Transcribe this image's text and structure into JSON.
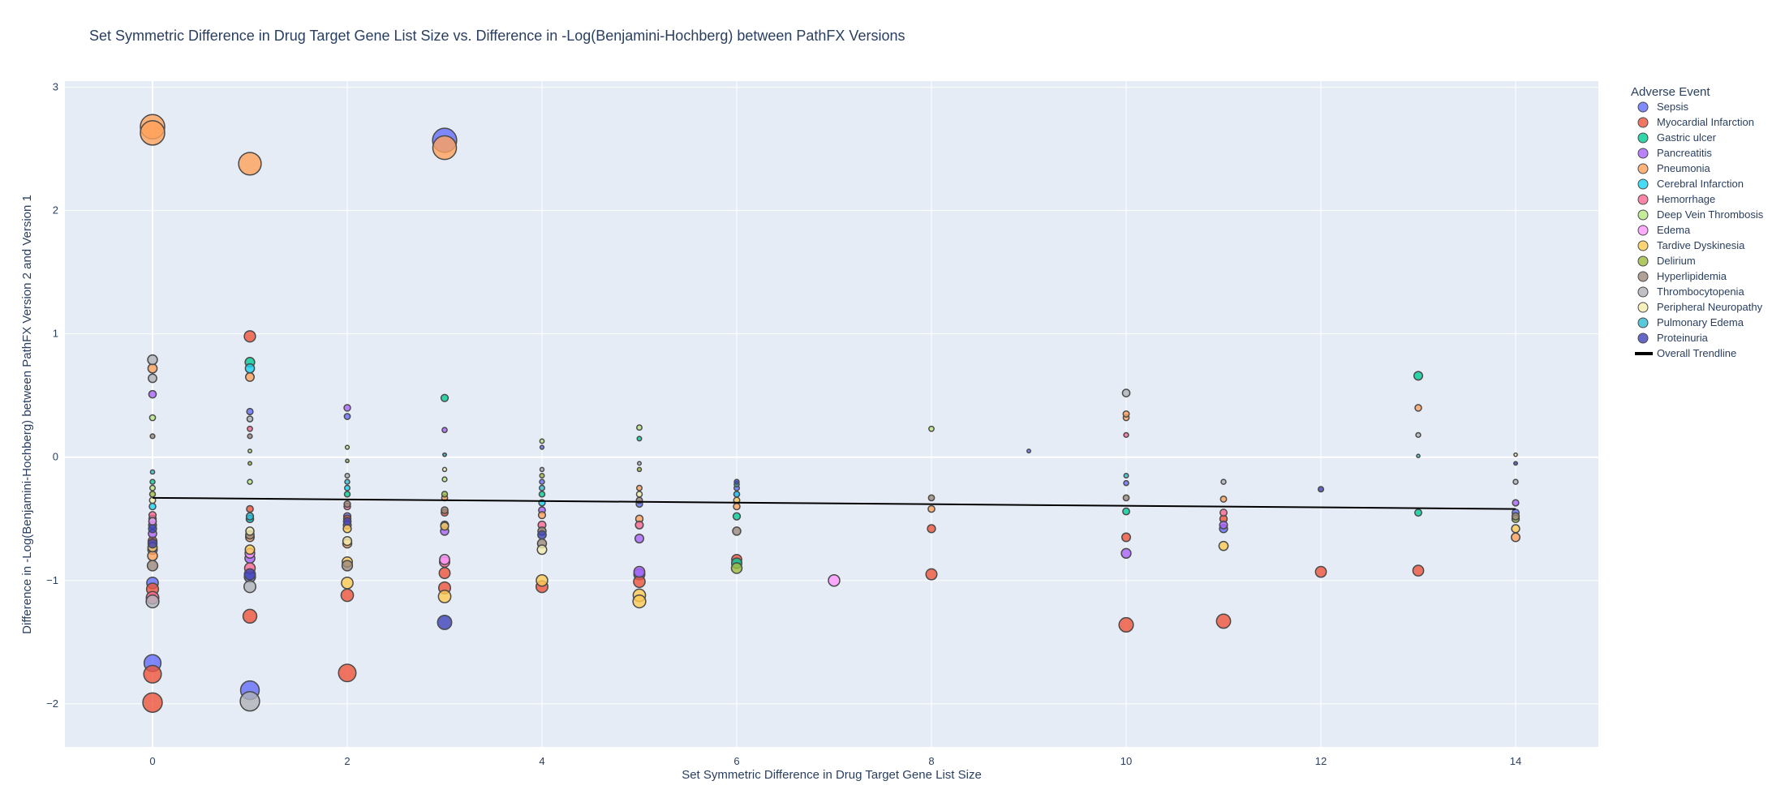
{
  "chart_data": {
    "type": "scatter",
    "title": "Set Symmetric Difference in Drug Target Gene List Size vs. Difference in -Log(Benjamini-Hochberg) between PathFX Versions",
    "xlabel": "Set Symmetric Difference in Drug Target Gene List Size",
    "ylabel": "Difference in -Log(Benjamini-Hochberg) between PathFX Version 2 and Version 1",
    "xlim": [
      -0.9,
      14.85
    ],
    "ylim": [
      -2.35,
      3.05
    ],
    "xticks": [
      0,
      2,
      4,
      6,
      8,
      10,
      12,
      14
    ],
    "yticks": [
      -2,
      -1,
      0,
      1,
      2,
      3
    ],
    "xtick_labels": [
      "0",
      "2",
      "4",
      "6",
      "8",
      "10",
      "12",
      "14"
    ],
    "ytick_labels": [
      "−2",
      "−1",
      "0",
      "1",
      "2",
      "3"
    ],
    "grid": true,
    "legend": {
      "title": "Adverse Event",
      "placement": "right",
      "trendline_label": "Overall Trendline"
    },
    "trendline": {
      "x": [
        0,
        14
      ],
      "y": [
        -0.33,
        -0.42
      ]
    },
    "series": [
      {
        "name": "Sepsis",
        "color": "#636efa",
        "points": [
          [
            0,
            -0.55
          ],
          [
            0,
            -0.75
          ],
          [
            0,
            -1.02
          ],
          [
            0,
            -1.67
          ],
          [
            1,
            0.37
          ],
          [
            1,
            -0.97
          ],
          [
            1,
            -1.89
          ],
          [
            2,
            0.33
          ],
          [
            2,
            -0.48
          ],
          [
            3,
            2.57
          ],
          [
            3,
            -0.55
          ],
          [
            4,
            0.08
          ],
          [
            4,
            -0.2
          ],
          [
            5,
            -0.38
          ],
          [
            5,
            -0.95
          ],
          [
            6,
            -0.25
          ],
          [
            9,
            0.05
          ],
          [
            10,
            -0.21
          ],
          [
            11,
            -0.58
          ],
          [
            14,
            -0.45
          ]
        ]
      },
      {
        "name": "Myocardial Infarction",
        "color": "#ef553b",
        "points": [
          [
            0,
            -0.68
          ],
          [
            0,
            -1.07
          ],
          [
            0,
            -1.76
          ],
          [
            0,
            -1.99
          ],
          [
            1,
            0.98
          ],
          [
            1,
            -0.42
          ],
          [
            1,
            -1.29
          ],
          [
            2,
            -0.5
          ],
          [
            2,
            -1.12
          ],
          [
            2,
            -1.75
          ],
          [
            3,
            -0.45
          ],
          [
            3,
            -0.94
          ],
          [
            3,
            -1.06
          ],
          [
            4,
            -1.05
          ],
          [
            5,
            -1.01
          ],
          [
            6,
            -0.83
          ],
          [
            8,
            -0.58
          ],
          [
            8,
            -0.95
          ],
          [
            10,
            -0.65
          ],
          [
            10,
            -1.36
          ],
          [
            11,
            -0.5
          ],
          [
            11,
            -1.33
          ],
          [
            12,
            -0.93
          ],
          [
            13,
            -0.92
          ]
        ]
      },
      {
        "name": "Gastric ulcer",
        "color": "#00cc96",
        "points": [
          [
            0,
            -0.2
          ],
          [
            0,
            -0.5
          ],
          [
            1,
            0.77
          ],
          [
            1,
            -0.5
          ],
          [
            2,
            -0.3
          ],
          [
            3,
            0.48
          ],
          [
            4,
            -0.3
          ],
          [
            5,
            0.15
          ],
          [
            6,
            -0.48
          ],
          [
            6,
            -0.86
          ],
          [
            10,
            -0.44
          ],
          [
            13,
            0.66
          ],
          [
            13,
            -0.45
          ]
        ]
      },
      {
        "name": "Pancreatitis",
        "color": "#ab63fa",
        "points": [
          [
            0,
            0.51
          ],
          [
            0,
            -0.62
          ],
          [
            1,
            -0.82
          ],
          [
            2,
            0.4
          ],
          [
            2,
            -0.55
          ],
          [
            3,
            0.22
          ],
          [
            3,
            -0.6
          ],
          [
            4,
            -0.43
          ],
          [
            5,
            -0.66
          ],
          [
            5,
            -0.93
          ],
          [
            6,
            -0.3
          ],
          [
            10,
            -0.78
          ],
          [
            11,
            -0.55
          ],
          [
            14,
            -0.37
          ]
        ]
      },
      {
        "name": "Pneumonia",
        "color": "#ffa15a",
        "points": [
          [
            0,
            2.68
          ],
          [
            0,
            2.63
          ],
          [
            0,
            0.72
          ],
          [
            0,
            -0.8
          ],
          [
            1,
            2.38
          ],
          [
            1,
            0.65
          ],
          [
            1,
            -0.65
          ],
          [
            2,
            -0.7
          ],
          [
            3,
            2.51
          ],
          [
            3,
            -0.33
          ],
          [
            4,
            -0.47
          ],
          [
            5,
            -0.25
          ],
          [
            5,
            -0.5
          ],
          [
            6,
            -0.4
          ],
          [
            8,
            -0.42
          ],
          [
            10,
            0.32
          ],
          [
            10,
            0.35
          ],
          [
            11,
            -0.34
          ],
          [
            13,
            0.4
          ],
          [
            14,
            -0.65
          ]
        ]
      },
      {
        "name": "Cerebral Infarction",
        "color": "#19d3f3",
        "points": [
          [
            0,
            -0.4
          ],
          [
            1,
            0.72
          ],
          [
            1,
            -0.5
          ],
          [
            2,
            -0.25
          ],
          [
            4,
            -0.37
          ],
          [
            6,
            -0.3
          ]
        ]
      },
      {
        "name": "Hemorrhage",
        "color": "#ff6692",
        "points": [
          [
            0,
            -0.47
          ],
          [
            0,
            -1.14
          ],
          [
            1,
            0.23
          ],
          [
            1,
            -0.9
          ],
          [
            2,
            -0.4
          ],
          [
            3,
            -0.85
          ],
          [
            4,
            -0.55
          ],
          [
            5,
            -0.55
          ],
          [
            10,
            0.18
          ],
          [
            11,
            -0.45
          ]
        ]
      },
      {
        "name": "Deep Vein Thrombosis",
        "color": "#b6e880",
        "points": [
          [
            0,
            0.32
          ],
          [
            0,
            -0.25
          ],
          [
            1,
            0.05
          ],
          [
            1,
            -0.2
          ],
          [
            2,
            0.08
          ],
          [
            3,
            -0.18
          ],
          [
            4,
            0.13
          ],
          [
            5,
            0.24
          ],
          [
            8,
            0.23
          ]
        ]
      },
      {
        "name": "Edema",
        "color": "#ff97ff",
        "points": [
          [
            0,
            -0.52
          ],
          [
            1,
            -0.78
          ],
          [
            3,
            -0.83
          ],
          [
            7,
            -1.0
          ]
        ]
      },
      {
        "name": "Tardive Dyskinesia",
        "color": "#fecb52",
        "points": [
          [
            0,
            -0.73
          ],
          [
            1,
            -0.75
          ],
          [
            2,
            -0.58
          ],
          [
            2,
            -0.85
          ],
          [
            2,
            -1.02
          ],
          [
            3,
            -0.56
          ],
          [
            3,
            -1.13
          ],
          [
            4,
            -1.0
          ],
          [
            5,
            -1.12
          ],
          [
            5,
            -1.17
          ],
          [
            6,
            -0.35
          ],
          [
            11,
            -0.72
          ],
          [
            14,
            -0.58
          ]
        ]
      },
      {
        "name": "Delirium",
        "color": "#9ebb3e",
        "points": [
          [
            0,
            -0.3
          ],
          [
            1,
            -0.05
          ],
          [
            2,
            -0.03
          ],
          [
            3,
            -0.3
          ],
          [
            4,
            -0.15
          ],
          [
            5,
            -0.1
          ],
          [
            6,
            -0.9
          ],
          [
            14,
            -0.5
          ]
        ]
      },
      {
        "name": "Hyperlipidemia",
        "color": "#9c8a7c",
        "points": [
          [
            0,
            0.17
          ],
          [
            0,
            -0.88
          ],
          [
            1,
            0.17
          ],
          [
            1,
            -0.63
          ],
          [
            2,
            -0.38
          ],
          [
            2,
            -0.88
          ],
          [
            3,
            -0.43
          ],
          [
            4,
            -0.6
          ],
          [
            4,
            -0.7
          ],
          [
            5,
            -0.35
          ],
          [
            6,
            -0.6
          ],
          [
            8,
            -0.33
          ],
          [
            10,
            -0.33
          ],
          [
            14,
            -0.48
          ]
        ]
      },
      {
        "name": "Thrombocytopenia",
        "color": "#b0b2b8",
        "points": [
          [
            0,
            0.79
          ],
          [
            0,
            0.64
          ],
          [
            0,
            -1.17
          ],
          [
            1,
            0.31
          ],
          [
            1,
            -1.05
          ],
          [
            1,
            -1.98
          ],
          [
            2,
            -0.15
          ],
          [
            3,
            0.02
          ],
          [
            4,
            -0.1
          ],
          [
            5,
            -0.05
          ],
          [
            10,
            0.52
          ],
          [
            11,
            -0.2
          ],
          [
            13,
            0.18
          ],
          [
            14,
            -0.2
          ]
        ]
      },
      {
        "name": "Peripheral Neuropathy",
        "color": "#f2ecad",
        "points": [
          [
            0,
            -0.35
          ],
          [
            1,
            -0.6
          ],
          [
            2,
            -0.68
          ],
          [
            3,
            -0.1
          ],
          [
            4,
            -0.75
          ],
          [
            5,
            -0.3
          ],
          [
            14,
            0.02
          ]
        ]
      },
      {
        "name": "Pulmonary Edema",
        "color": "#2ebcd1",
        "points": [
          [
            0,
            -0.12
          ],
          [
            1,
            -0.48
          ],
          [
            2,
            -0.2
          ],
          [
            3,
            0.02
          ],
          [
            4,
            -0.25
          ],
          [
            6,
            -0.22
          ],
          [
            10,
            -0.15
          ],
          [
            13,
            0.01
          ]
        ]
      },
      {
        "name": "Proteinuria",
        "color": "#3f42b8",
        "points": [
          [
            0,
            -0.58
          ],
          [
            0,
            -0.7
          ],
          [
            1,
            -0.95
          ],
          [
            2,
            -0.52
          ],
          [
            3,
            -1.34
          ],
          [
            4,
            -0.63
          ],
          [
            6,
            -0.2
          ],
          [
            12,
            -0.26
          ],
          [
            14,
            -0.05
          ]
        ]
      }
    ]
  }
}
